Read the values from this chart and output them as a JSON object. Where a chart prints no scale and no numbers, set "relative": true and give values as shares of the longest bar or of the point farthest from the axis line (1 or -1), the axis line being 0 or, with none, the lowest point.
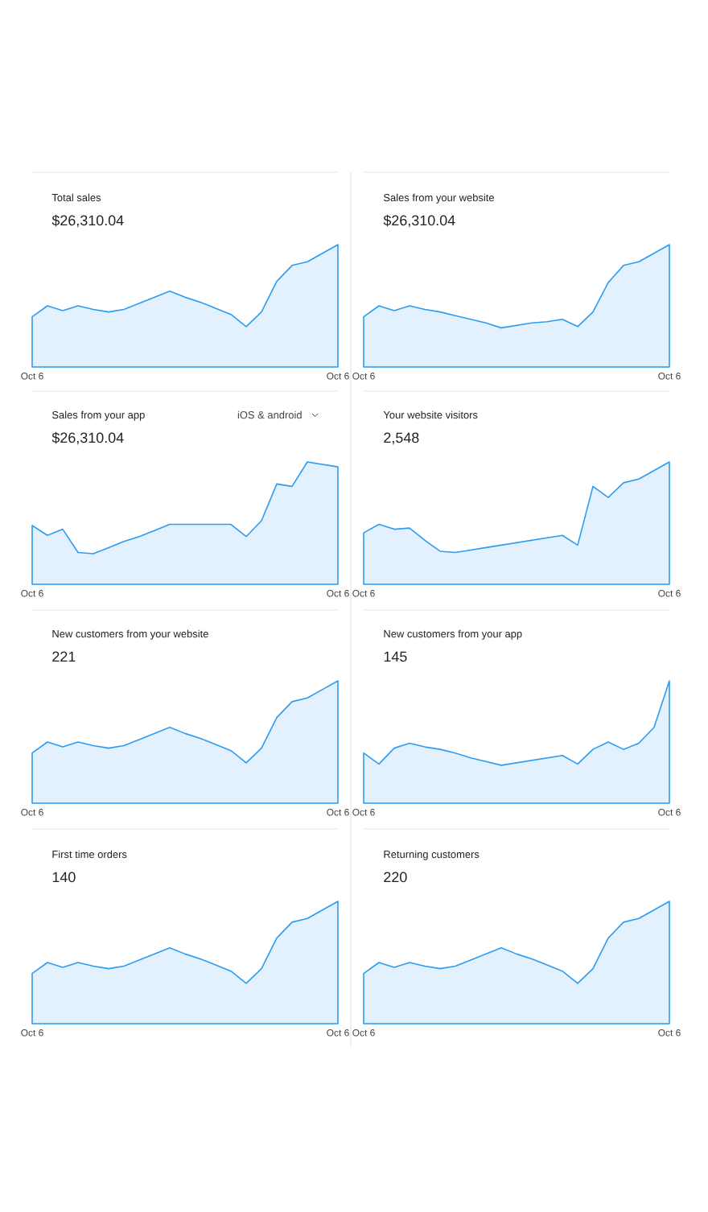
{
  "chart_data": [
    {
      "type": "area",
      "title": "Total sales",
      "subtitle": "$26,310.04",
      "relative": true,
      "color": "#2d9cf0",
      "categories": [
        "Oct 6",
        null,
        null,
        null,
        null,
        null,
        null,
        null,
        null,
        null,
        null,
        null,
        null,
        null,
        null,
        null,
        null,
        null,
        null,
        null,
        "Oct 6"
      ],
      "values": [
        0.41,
        0.5,
        0.46,
        0.5,
        0.47,
        0.45,
        0.47,
        0.52,
        0.57,
        0.62,
        0.57,
        0.53,
        0.48,
        0.43,
        0.33,
        0.45,
        0.7,
        0.83,
        0.86,
        0.93,
        1
      ]
    },
    {
      "type": "area",
      "title": "Sales from your website",
      "subtitle": "$26,310.04",
      "relative": true,
      "color": "#2d9cf0",
      "categories": [
        "Oct 6",
        null,
        null,
        null,
        null,
        null,
        null,
        null,
        null,
        null,
        null,
        null,
        null,
        null,
        null,
        null,
        null,
        null,
        null,
        null,
        "Oct 6"
      ],
      "values": [
        0.41,
        0.5,
        0.46,
        0.5,
        0.47,
        0.45,
        0.42,
        0.39,
        0.36,
        0.32,
        0.34,
        0.36,
        0.37,
        0.39,
        0.33,
        0.45,
        0.69,
        0.83,
        0.86,
        0.93,
        1
      ]
    },
    {
      "type": "area",
      "title": "Sales from your app",
      "subtitle": "$26,310.04",
      "annotations": [
        "iOS & android"
      ],
      "relative": true,
      "color": "#2d9cf0",
      "categories": [
        "Oct 6",
        null,
        null,
        null,
        null,
        null,
        null,
        null,
        null,
        null,
        null,
        null,
        null,
        null,
        null,
        null,
        null,
        null,
        null,
        null,
        "Oct 6"
      ],
      "values": [
        0.48,
        0.4,
        0.45,
        0.26,
        0.25,
        0.3,
        0.35,
        0.39,
        0.44,
        0.49,
        0.49,
        0.49,
        0.49,
        0.49,
        0.39,
        0.52,
        0.82,
        0.8,
        1,
        0.98,
        0.96
      ]
    },
    {
      "type": "area",
      "title": "Your website visitors",
      "subtitle": "2,548",
      "relative": true,
      "color": "#2d9cf0",
      "categories": [
        "Oct 6",
        null,
        null,
        null,
        null,
        null,
        null,
        null,
        null,
        null,
        null,
        null,
        null,
        null,
        null,
        null,
        null,
        null,
        null,
        null,
        "Oct 6"
      ],
      "values": [
        0.42,
        0.49,
        0.45,
        0.46,
        0.36,
        0.27,
        0.26,
        0.28,
        0.3,
        0.32,
        0.34,
        0.36,
        0.38,
        0.4,
        0.32,
        0.8,
        0.71,
        0.83,
        0.86,
        0.93,
        1
      ]
    },
    {
      "type": "area",
      "title": "New customers from your website",
      "subtitle": "221",
      "relative": true,
      "color": "#2d9cf0",
      "categories": [
        "Oct 6",
        null,
        null,
        null,
        null,
        null,
        null,
        null,
        null,
        null,
        null,
        null,
        null,
        null,
        null,
        null,
        null,
        null,
        null,
        null,
        "Oct 6"
      ],
      "values": [
        0.41,
        0.5,
        0.46,
        0.5,
        0.47,
        0.45,
        0.47,
        0.52,
        0.57,
        0.62,
        0.57,
        0.53,
        0.48,
        0.43,
        0.33,
        0.45,
        0.7,
        0.83,
        0.86,
        0.93,
        1
      ]
    },
    {
      "type": "area",
      "title": "New customers from your app",
      "subtitle": "145",
      "relative": true,
      "color": "#2d9cf0",
      "categories": [
        "Oct 6",
        null,
        null,
        null,
        null,
        null,
        null,
        null,
        null,
        null,
        null,
        null,
        null,
        null,
        null,
        null,
        null,
        null,
        null,
        null,
        "Oct 6"
      ],
      "values": [
        0.41,
        0.32,
        0.45,
        0.49,
        0.46,
        0.44,
        0.41,
        0.37,
        0.34,
        0.31,
        0.33,
        0.35,
        0.37,
        0.39,
        0.32,
        0.44,
        0.5,
        0.44,
        0.49,
        0.62,
        1
      ]
    },
    {
      "type": "area",
      "title": "First time orders",
      "subtitle": "140",
      "relative": true,
      "color": "#2d9cf0",
      "categories": [
        "Oct 6",
        null,
        null,
        null,
        null,
        null,
        null,
        null,
        null,
        null,
        null,
        null,
        null,
        null,
        null,
        null,
        null,
        null,
        null,
        null,
        "Oct 6"
      ],
      "values": [
        0.41,
        0.5,
        0.46,
        0.5,
        0.47,
        0.45,
        0.47,
        0.52,
        0.57,
        0.62,
        0.57,
        0.53,
        0.48,
        0.43,
        0.33,
        0.45,
        0.7,
        0.83,
        0.86,
        0.93,
        1
      ]
    },
    {
      "type": "area",
      "title": "Returning customers",
      "subtitle": "220",
      "relative": true,
      "color": "#2d9cf0",
      "categories": [
        "Oct 6",
        null,
        null,
        null,
        null,
        null,
        null,
        null,
        null,
        null,
        null,
        null,
        null,
        null,
        null,
        null,
        null,
        null,
        null,
        null,
        "Oct 6"
      ],
      "values": [
        0.41,
        0.5,
        0.46,
        0.5,
        0.47,
        0.45,
        0.47,
        0.52,
        0.57,
        0.62,
        0.57,
        0.53,
        0.48,
        0.43,
        0.33,
        0.45,
        0.7,
        0.83,
        0.86,
        0.93,
        1
      ]
    }
  ]
}
